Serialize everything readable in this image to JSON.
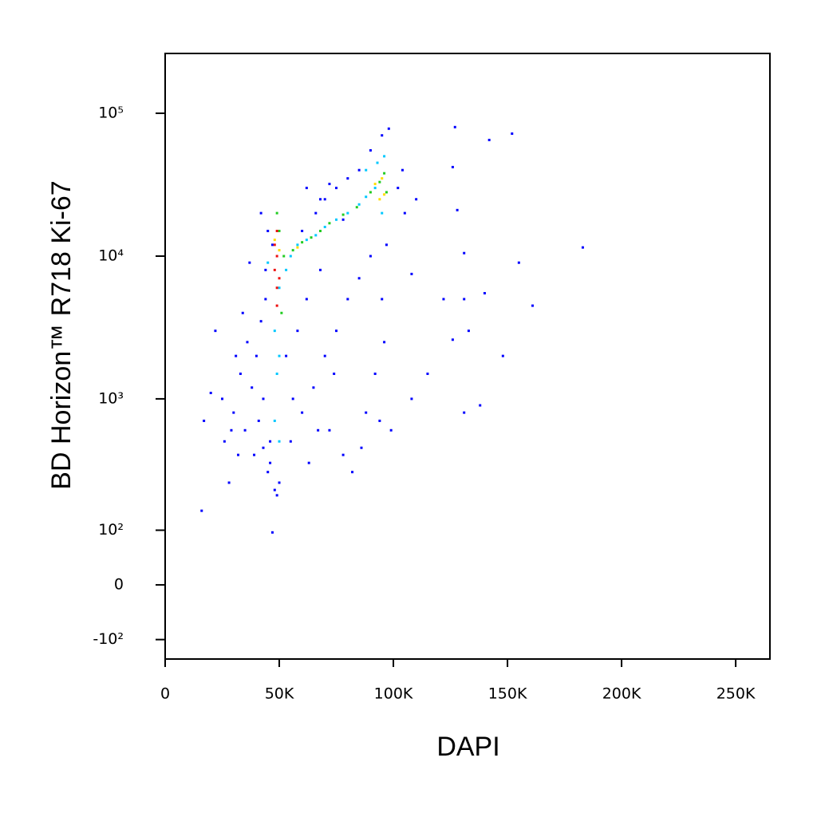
{
  "chart_data": {
    "type": "scatter",
    "xlabel": "DAPI",
    "ylabel": "BD Horizon™ R718  Ki-67",
    "xlim": [
      0,
      265000
    ],
    "ylim": [
      -150,
      262144
    ],
    "yscale": "biexponential",
    "xticks": [
      0,
      {
        "value": 50000,
        "label": "50K"
      },
      {
        "value": 100000,
        "label": "100K"
      },
      {
        "value": 150000,
        "label": "150K"
      },
      {
        "value": 200000,
        "label": "200K"
      },
      {
        "value": 250000,
        "label": "250K"
      }
    ],
    "yticks": [
      {
        "value": -100,
        "label": "-10²"
      },
      0,
      {
        "value": 100,
        "label": "10²"
      },
      {
        "value": 1000,
        "label": "10³"
      },
      {
        "value": 10000,
        "label": "10⁴"
      },
      {
        "value": 100000,
        "label": "10⁵"
      }
    ],
    "series": [
      {
        "color": "#0000ff",
        "x": [
          127000,
          142000,
          152000,
          126000,
          128000,
          131000,
          155000,
          183000,
          122000,
          131000,
          140000,
          161000,
          108000,
          133000,
          126000,
          148000,
          115000,
          108000,
          138000,
          131000,
          16000,
          47000,
          17000,
          20000,
          22000,
          25000,
          28000,
          32000,
          35000,
          38000,
          40000,
          42000,
          44000,
          30000,
          33000,
          36000,
          39000,
          41000,
          43000,
          45000,
          46000,
          47000,
          45000,
          44000,
          42000,
          37000,
          34000,
          31000,
          26000,
          29000,
          48000,
          49000,
          50000,
          43000,
          46000,
          55000,
          60000,
          65000,
          70000,
          75000,
          80000,
          85000,
          90000,
          58000,
          62000,
          68000,
          72000,
          78000,
          82000,
          88000,
          92000,
          96000,
          95000,
          97000,
          53000,
          56000,
          63000,
          67000,
          74000,
          86000,
          94000,
          99000,
          60000,
          66000,
          70000,
          75000,
          80000,
          85000,
          90000,
          95000,
          98000,
          62000,
          68000,
          72000,
          78000,
          102000,
          104000,
          110000,
          105000
        ],
        "y": [
          80000,
          65000,
          72000,
          42000,
          21000,
          10500,
          9000,
          11500,
          5000,
          5000,
          5500,
          4500,
          7500,
          3000,
          2600,
          2000,
          1500,
          1000,
          900,
          800,
          150,
          95,
          700,
          1100,
          3000,
          1000,
          250,
          400,
          600,
          1200,
          2000,
          3500,
          5000,
          800,
          1500,
          2500,
          400,
          700,
          1000,
          300,
          500,
          12000,
          15000,
          8000,
          20000,
          9000,
          4000,
          2000,
          500,
          600,
          220,
          200,
          250,
          450,
          350,
          500,
          800,
          1200,
          2000,
          3000,
          5000,
          7000,
          10000,
          3000,
          5000,
          8000,
          600,
          400,
          300,
          800,
          1500,
          2500,
          5000,
          12000,
          2000,
          1000,
          350,
          600,
          1500,
          450,
          700,
          600,
          15000,
          20000,
          25000,
          30000,
          35000,
          40000,
          55000,
          70000,
          78000,
          30000,
          25000,
          32000,
          18000,
          30000,
          40000,
          25000,
          20000
        ]
      },
      {
        "color": "#00c8ff",
        "x": [
          55000,
          58000,
          62000,
          66000,
          70000,
          75000,
          80000,
          85000,
          88000,
          92000,
          95000,
          48000,
          50000,
          49000,
          50000,
          53000,
          45000,
          88000,
          93000,
          96000,
          48000,
          50000
        ],
        "y": [
          10000,
          12000,
          13000,
          14000,
          16000,
          18000,
          20000,
          23000,
          26000,
          30000,
          20000,
          3000,
          2000,
          1500,
          6000,
          8000,
          9000,
          40000,
          45000,
          50000,
          700,
          500
        ]
      },
      {
        "color": "#22cc22",
        "x": [
          52000,
          56000,
          60000,
          64000,
          68000,
          72000,
          78000,
          84000,
          90000,
          94000,
          97000,
          96000,
          51000,
          50000,
          49000
        ],
        "y": [
          10000,
          11000,
          12500,
          13500,
          15000,
          17000,
          19500,
          22000,
          28000,
          33000,
          28000,
          38000,
          4000,
          15000,
          20000
        ]
      },
      {
        "color": "#ffdd00",
        "x": [
          48000,
          50000,
          92000,
          95000,
          96000,
          58000,
          94000
        ],
        "y": [
          13000,
          11000,
          32000,
          35000,
          27000,
          11500,
          25000
        ]
      },
      {
        "color": "#ee1111",
        "x": [
          48000,
          49000,
          49000,
          49000,
          48000,
          50000,
          49000
        ],
        "y": [
          8000,
          10000,
          6000,
          4500,
          12000,
          7000,
          15000
        ]
      }
    ]
  }
}
